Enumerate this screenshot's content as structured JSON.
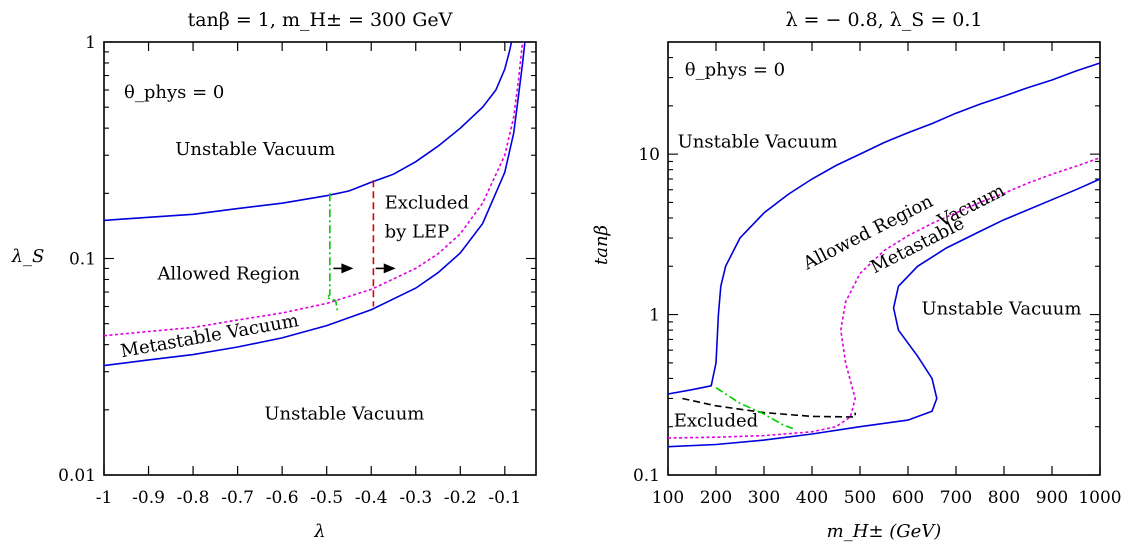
{
  "chart_data": [
    {
      "type": "line",
      "title": "tanβ = 1, m_H± = 300 GeV",
      "xlabel": "λ",
      "ylabel": "λ_S",
      "xlim": [
        -1.0,
        -0.03
      ],
      "ylim": [
        0.01,
        1
      ],
      "y_scale": "log",
      "grid": false,
      "x_ticks": [
        -1,
        -0.9,
        -0.8,
        -0.7,
        -0.6,
        -0.5,
        -0.4,
        -0.3,
        -0.2,
        -0.1
      ],
      "x_tick_labels": [
        "-1",
        "-0.9",
        "-0.8",
        "-0.7",
        "-0.6",
        "-0.5",
        "-0.4",
        "-0.3",
        "-0.2",
        "-0.1"
      ],
      "y_ticks": [
        0.01,
        0.1,
        1
      ],
      "y_tick_labels": [
        "0.01",
        "0.1",
        "1"
      ],
      "series": [
        {
          "style": "solid",
          "color": "#0000dd",
          "x": [
            -1.0,
            -0.9,
            -0.8,
            -0.7,
            -0.6,
            -0.5,
            -0.45,
            -0.4,
            -0.35,
            -0.3,
            -0.25,
            -0.2,
            -0.15,
            -0.12,
            -0.1,
            -0.09,
            -0.085
          ],
          "y": [
            0.15,
            0.155,
            0.16,
            0.17,
            0.18,
            0.195,
            0.205,
            0.225,
            0.245,
            0.28,
            0.33,
            0.4,
            0.5,
            0.6,
            0.75,
            0.9,
            1.0
          ]
        },
        {
          "style": "dotted",
          "color": "#e000e0",
          "x": [
            -1.0,
            -0.9,
            -0.8,
            -0.7,
            -0.6,
            -0.5,
            -0.4,
            -0.3,
            -0.25,
            -0.2,
            -0.15,
            -0.1,
            -0.08,
            -0.07,
            -0.06
          ],
          "y": [
            0.044,
            0.046,
            0.048,
            0.052,
            0.056,
            0.062,
            0.072,
            0.09,
            0.105,
            0.13,
            0.18,
            0.3,
            0.45,
            0.65,
            1.0
          ]
        },
        {
          "style": "solid",
          "color": "#0000dd",
          "x": [
            -1.0,
            -0.9,
            -0.8,
            -0.7,
            -0.6,
            -0.5,
            -0.4,
            -0.3,
            -0.25,
            -0.2,
            -0.15,
            -0.1,
            -0.08,
            -0.07,
            -0.06,
            -0.055
          ],
          "y": [
            0.032,
            0.034,
            0.036,
            0.039,
            0.043,
            0.049,
            0.058,
            0.073,
            0.086,
            0.106,
            0.145,
            0.25,
            0.38,
            0.55,
            0.8,
            1.0
          ]
        },
        {
          "style": "dash-dot",
          "color": "#00cc00",
          "x": [
            -0.493,
            -0.493,
            -0.5,
            -0.48,
            -0.475
          ],
          "y": [
            0.2,
            0.068,
            0.066,
            0.064,
            0.056
          ]
        },
        {
          "style": "dashed",
          "color": "#dd0000",
          "x": [
            -0.395,
            -0.395
          ],
          "y": [
            0.23,
            0.06
          ]
        }
      ],
      "arrows": [
        {
          "from": [
            -0.485,
            0.09
          ],
          "to": [
            -0.44,
            0.09
          ]
        },
        {
          "from": [
            -0.39,
            0.09
          ],
          "to": [
            -0.345,
            0.09
          ]
        }
      ],
      "annotations": [
        {
          "text": "θ_phys = 0",
          "x": -0.955,
          "y": 0.55
        },
        {
          "text": "Unstable Vacuum",
          "x": -0.84,
          "y": 0.3
        },
        {
          "text": "Excluded",
          "x": -0.37,
          "y": 0.17
        },
        {
          "text": "by LEP",
          "x": -0.37,
          "y": 0.125
        },
        {
          "text": "Allowed Region",
          "x": -0.88,
          "y": 0.08
        },
        {
          "text": "Metastable Vacuum",
          "x": -0.96,
          "y": 0.035,
          "rotate": -10
        },
        {
          "text": "Unstable Vacuum",
          "x": -0.64,
          "y": 0.018
        }
      ]
    },
    {
      "type": "line",
      "title": "λ = − 0.8, λ_S = 0.1",
      "xlabel": "m_H±   (GeV)",
      "ylabel": "tanβ",
      "xlim": [
        100,
        1000
      ],
      "ylim": [
        0.1,
        50
      ],
      "y_scale": "log",
      "grid": false,
      "x_ticks": [
        100,
        200,
        300,
        400,
        500,
        600,
        700,
        800,
        900,
        1000
      ],
      "x_tick_labels": [
        "100",
        "200",
        "300",
        "400",
        "500",
        "600",
        "700",
        "800",
        "900",
        "1000"
      ],
      "y_ticks": [
        0.1,
        1,
        10
      ],
      "y_tick_labels": [
        "0.1",
        "1",
        "10"
      ],
      "series": [
        {
          "style": "solid",
          "color": "#0000dd",
          "x": [
            100,
            150,
            190,
            200,
            205,
            210,
            220,
            250,
            300,
            350,
            400,
            450,
            500,
            550,
            600,
            650,
            700,
            750,
            800,
            850,
            900,
            950,
            1000
          ],
          "y": [
            0.32,
            0.34,
            0.36,
            0.5,
            1.0,
            1.5,
            2.0,
            3.0,
            4.3,
            5.6,
            7.0,
            8.5,
            10.0,
            11.8,
            13.6,
            15.5,
            18.0,
            20.5,
            23.0,
            26.0,
            29.0,
            33.0,
            37.0
          ]
        },
        {
          "style": "dotted",
          "color": "#e000e0",
          "x": [
            100,
            200,
            300,
            400,
            450,
            480,
            490,
            470,
            460,
            470,
            500,
            550,
            600,
            650,
            700,
            750,
            800,
            850,
            900,
            950,
            1000
          ],
          "y": [
            0.17,
            0.172,
            0.176,
            0.186,
            0.2,
            0.23,
            0.3,
            0.5,
            0.8,
            1.2,
            1.8,
            2.5,
            3.1,
            3.7,
            4.3,
            5.0,
            5.7,
            6.6,
            7.5,
            8.4,
            9.5
          ]
        },
        {
          "style": "solid",
          "color": "#0000dd",
          "x": [
            100,
            200,
            300,
            400,
            500,
            600,
            650,
            660,
            650,
            620,
            580,
            570,
            580,
            620,
            680,
            750,
            800,
            850,
            900,
            950,
            1000
          ],
          "y": [
            0.15,
            0.155,
            0.165,
            0.18,
            0.2,
            0.22,
            0.25,
            0.3,
            0.4,
            0.55,
            0.8,
            1.1,
            1.5,
            2.0,
            2.6,
            3.3,
            3.9,
            4.5,
            5.2,
            6.0,
            7.0
          ]
        },
        {
          "style": "dashed",
          "color": "#000000",
          "x": [
            130,
            200,
            300,
            400,
            490,
            490
          ],
          "y": [
            0.3,
            0.27,
            0.245,
            0.232,
            0.23,
            0.245
          ]
        },
        {
          "style": "dash-dot",
          "color": "#00cc00",
          "x": [
            200,
            250,
            300,
            340,
            360
          ],
          "y": [
            0.35,
            0.28,
            0.24,
            0.205,
            0.195
          ]
        }
      ],
      "annotations": [
        {
          "text": "θ_phys = 0",
          "x": 135,
          "y": 31
        },
        {
          "text": "Unstable Vacuum",
          "x": 120,
          "y": 11
        },
        {
          "text": "Allowed Region",
          "x": 390,
          "y": 1.9,
          "rotate": -27
        },
        {
          "text": "Metastable",
          "x": 530,
          "y": 1.8,
          "rotate": -27
        },
        {
          "text": "Vacuum",
          "x": 670,
          "y": 3.5,
          "rotate": -27
        },
        {
          "text": "Unstable Vacuum",
          "x": 628,
          "y": 1.0
        },
        {
          "text": "Excluded",
          "x": 112,
          "y": 0.2
        }
      ]
    }
  ]
}
